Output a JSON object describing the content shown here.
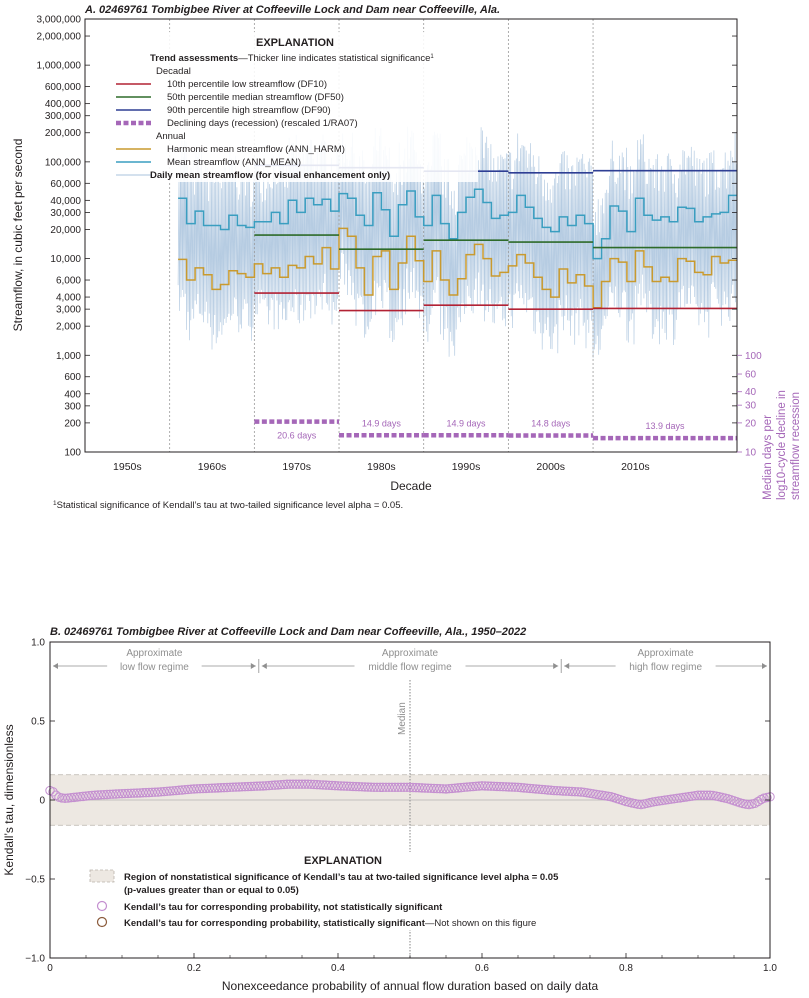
{
  "chart_data": [
    {
      "type": "line",
      "title": "A. 02469761 Tombigbee River at Coffeeville Lock and Dam near Coffeeville, Ala.",
      "xlabel": "Decade",
      "ylabel": "Streamflow, in cubic feet per second",
      "y2label_lines": [
        "Median days per",
        "log10-cycle decline in",
        "streamflow recession"
      ],
      "yscale": "log",
      "ylim": [
        100,
        3000000
      ],
      "xlim": [
        1945,
        2022
      ],
      "x_tick_labels": [
        "1950s",
        "1960s",
        "1970s",
        "1980s",
        "1990s",
        "2000s",
        "2010s"
      ],
      "y_ticks": [
        {
          "v": 100,
          "l": "100"
        },
        {
          "v": 200,
          "l": "200"
        },
        {
          "v": 300,
          "l": "300"
        },
        {
          "v": 400,
          "l": "400"
        },
        {
          "v": 600,
          "l": "600"
        },
        {
          "v": 1000,
          "l": "1,000"
        },
        {
          "v": 2000,
          "l": "2,000"
        },
        {
          "v": 3000,
          "l": "3,000"
        },
        {
          "v": 4000,
          "l": "4,000"
        },
        {
          "v": 6000,
          "l": "6,000"
        },
        {
          "v": 10000,
          "l": "10,000"
        },
        {
          "v": 20000,
          "l": "20,000"
        },
        {
          "v": 30000,
          "l": "30,000"
        },
        {
          "v": 40000,
          "l": "40,000"
        },
        {
          "v": 60000,
          "l": "60,000"
        },
        {
          "v": 100000,
          "l": "100,000"
        },
        {
          "v": 200000,
          "l": "200,000"
        },
        {
          "v": 300000,
          "l": "300,000"
        },
        {
          "v": 400000,
          "l": "400,000"
        },
        {
          "v": 600000,
          "l": "600,000"
        },
        {
          "v": 1000000,
          "l": "1,000,000"
        },
        {
          "v": 2000000,
          "l": "2,000,000"
        },
        {
          "v": 3000000,
          "l": "3,000,000"
        }
      ],
      "y2_ticks": [
        {
          "v": 100,
          "l": "100",
          "y": 1000
        },
        {
          "v": 60,
          "l": "60",
          "y": 640
        },
        {
          "v": 40,
          "l": "40",
          "y": 420
        },
        {
          "v": 30,
          "l": "30",
          "y": 305
        },
        {
          "v": 20,
          "l": "20",
          "y": 200
        },
        {
          "v": 10,
          "l": "10",
          "y": 100
        }
      ],
      "decadal_segments": {
        "DF10": [
          [
            1965,
            1975,
            4400
          ],
          [
            1975,
            1985,
            2900
          ],
          [
            1985,
            1995,
            3300
          ],
          [
            1995,
            2005,
            3000
          ],
          [
            2005,
            2022,
            3050
          ]
        ],
        "DF50": [
          [
            1965,
            1975,
            17500
          ],
          [
            1975,
            1985,
            12500
          ],
          [
            1985,
            1995,
            15500
          ],
          [
            1995,
            2005,
            14800
          ],
          [
            2005,
            2022,
            13000
          ]
        ],
        "DF90": [
          [
            1965,
            1975,
            92000
          ],
          [
            1975,
            1985,
            87000
          ],
          [
            1985,
            1995,
            80000
          ],
          [
            1995,
            2005,
            77000
          ],
          [
            2005,
            2022,
            81000
          ]
        ],
        "RA07": [
          [
            1965,
            1975,
            20.6,
            "20.6 days"
          ],
          [
            1975,
            1985,
            14.9,
            "14.9 days"
          ],
          [
            1985,
            1995,
            14.9,
            "14.9 days"
          ],
          [
            1995,
            2005,
            14.8,
            "14.8 days"
          ],
          [
            2005,
            2022,
            13.9,
            "13.9 days"
          ]
        ]
      },
      "annual_years": [
        1956,
        1957,
        1958,
        1959,
        1960,
        1961,
        1962,
        1963,
        1964,
        1965,
        1966,
        1967,
        1968,
        1969,
        1970,
        1971,
        1972,
        1973,
        1974,
        1975,
        1976,
        1977,
        1978,
        1979,
        1980,
        1981,
        1982,
        1983,
        1984,
        1985,
        1986,
        1987,
        1988,
        1989,
        1990,
        1991,
        1992,
        1993,
        1994,
        1995,
        1996,
        1997,
        1998,
        1999,
        2000,
        2001,
        2002,
        2003,
        2004,
        2005,
        2006,
        2007,
        2008,
        2009,
        2010,
        2011,
        2012,
        2013,
        2014,
        2015,
        2016,
        2017,
        2018,
        2019,
        2020,
        2021
      ],
      "ANN_MEAN": [
        42000,
        23000,
        31000,
        22000,
        22000,
        20000,
        28000,
        22000,
        21000,
        24000,
        24000,
        30000,
        23000,
        40000,
        30000,
        42000,
        36000,
        41000,
        31000,
        47000,
        42000,
        28000,
        22000,
        48000,
        32000,
        17000,
        36000,
        50000,
        27000,
        22000,
        45000,
        23000,
        16000,
        30000,
        43000,
        52000,
        38000,
        26000,
        28000,
        30000,
        45000,
        34000,
        26000,
        21000,
        19000,
        27000,
        22000,
        28000,
        23000,
        10000,
        16000,
        35000,
        31000,
        19000,
        42000,
        28000,
        25000,
        27000,
        24000,
        34000,
        33000,
        24000,
        27000,
        29000,
        30000,
        45000
      ],
      "ANN_HARM": [
        9800,
        6000,
        8000,
        6800,
        4800,
        5400,
        7500,
        7000,
        6400,
        8800,
        7000,
        8000,
        6400,
        8500,
        8000,
        10500,
        8800,
        13000,
        7800,
        20500,
        17000,
        8000,
        4200,
        10500,
        12000,
        4800,
        9000,
        17000,
        9500,
        5800,
        12000,
        6000,
        4200,
        6200,
        11000,
        14000,
        10000,
        6600,
        7200,
        8400,
        11000,
        9000,
        6400,
        4800,
        4000,
        7800,
        5600,
        6800,
        5200,
        3100,
        5800,
        10000,
        9200,
        5800,
        12000,
        8200,
        5800,
        6400,
        5800,
        10000,
        9400,
        7200,
        6800,
        10500,
        9000,
        9600
      ],
      "series": [
        {
          "name": "10th percentile low streamflow (DF10)",
          "color": "#b22234"
        },
        {
          "name": "50th percentile median streamflow (DF50)",
          "color": "#2e6b2a"
        },
        {
          "name": "90th percentile high streamflow (DF90)",
          "color": "#2f3f94"
        },
        {
          "name": "Declining days (recession) (rescaled 1/RA07)",
          "color": "#a567b8"
        },
        {
          "name": "Harmonic mean streamflow (ANN_HARM)",
          "color": "#c99a2e"
        },
        {
          "name": "Mean streamflow (ANN_MEAN)",
          "color": "#3a9ec0"
        },
        {
          "name": "Daily mean streamflow (for visual enhancement only)",
          "color": "#a9c3dd"
        }
      ],
      "legend": {
        "title": "EXPLANATION",
        "trend_head": "Trend assessments",
        "trend_note": "—Thicker line indicates statistical significance",
        "trend_note_sup": "1",
        "decadal_head": "Decadal",
        "annual_head": "Annual"
      },
      "footnote_sup": "1",
      "footnote": "Statistical significance of Kendall’s tau at two-tailed significance level alpha = 0.05."
    },
    {
      "type": "scatter",
      "title": "B. 02469761 Tombigbee River at Coffeeville Lock and Dam near Coffeeville, Ala., 1950–2022",
      "xlabel": "Nonexceedance probability of annual flow duration based on daily data",
      "ylabel": "Kendall’s tau, dimensionless",
      "xlim": [
        0,
        1
      ],
      "ylim": [
        -1,
        1
      ],
      "x_ticks": [
        {
          "v": 0,
          "l": "0"
        },
        {
          "v": 0.2,
          "l": "0.2"
        },
        {
          "v": 0.4,
          "l": "0.4"
        },
        {
          "v": 0.6,
          "l": "0.6"
        },
        {
          "v": 0.8,
          "l": "0.8"
        },
        {
          "v": 1,
          "l": "1.0"
        }
      ],
      "y_ticks": [
        {
          "v": 1,
          "l": "1.0"
        },
        {
          "v": 0.5,
          "l": "0.5"
        },
        {
          "v": 0,
          "l": "0"
        },
        {
          "v": -0.5,
          "l": "−0.5"
        },
        {
          "v": -1,
          "l": "−1.0"
        }
      ],
      "nonsignificance_band": [
        -0.16,
        0.16
      ],
      "median_x": 0.5,
      "median_label": "Median",
      "regimes": [
        {
          "lines": [
            "Approximate",
            "low flow regime"
          ],
          "from": 0,
          "to": 0.29
        },
        {
          "lines": [
            "Approximate",
            "middle flow regime"
          ],
          "from": 0.29,
          "to": 0.71
        },
        {
          "lines": [
            "Approximate",
            "high flow regime"
          ],
          "from": 0.71,
          "to": 1
        }
      ],
      "tau_curve": [
        [
          0,
          0.06
        ],
        [
          0.005,
          0.05
        ],
        [
          0.01,
          0.02
        ],
        [
          0.02,
          0.01
        ],
        [
          0.04,
          0.02
        ],
        [
          0.06,
          0.03
        ],
        [
          0.1,
          0.04
        ],
        [
          0.15,
          0.05
        ],
        [
          0.2,
          0.07
        ],
        [
          0.25,
          0.08
        ],
        [
          0.3,
          0.09
        ],
        [
          0.33,
          0.1
        ],
        [
          0.36,
          0.1
        ],
        [
          0.4,
          0.09
        ],
        [
          0.45,
          0.08
        ],
        [
          0.5,
          0.08
        ],
        [
          0.55,
          0.07
        ],
        [
          0.6,
          0.09
        ],
        [
          0.65,
          0.08
        ],
        [
          0.7,
          0.06
        ],
        [
          0.74,
          0.05
        ],
        [
          0.78,
          0.02
        ],
        [
          0.8,
          -0.01
        ],
        [
          0.82,
          -0.03
        ],
        [
          0.84,
          -0.01
        ],
        [
          0.87,
          0.01
        ],
        [
          0.9,
          0.03
        ],
        [
          0.92,
          0.03
        ],
        [
          0.94,
          0.01
        ],
        [
          0.96,
          -0.02
        ],
        [
          0.97,
          -0.03
        ],
        [
          0.98,
          -0.02
        ],
        [
          0.99,
          0.01
        ],
        [
          1,
          0.02
        ]
      ],
      "series": [
        {
          "name": "Kendall’s tau for corresponding probability, not statistically significant",
          "color": "#c48fd0"
        },
        {
          "name": "Kendall’s tau for corresponding probability, statistically significant",
          "color": "#8a5a3a"
        }
      ],
      "legend": {
        "title": "EXPLANATION",
        "band_line1": "Region of nonstatistical significance of Kendall’s tau at two-tailed significance level alpha = 0.05",
        "band_line2": "(p-values greater than or equal to 0.05)",
        "sig_suffix": "—Not shown on this figure"
      }
    }
  ]
}
